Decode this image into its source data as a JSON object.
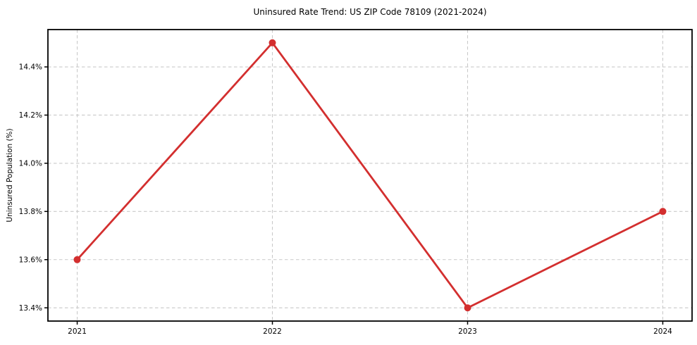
{
  "chart_data": {
    "type": "line",
    "title": "Uninsured Rate Trend: US ZIP Code 78109 (2021-2024)",
    "xlabel": "",
    "ylabel": "Uninsured Population (%)",
    "x": [
      2021,
      2022,
      2023,
      2024
    ],
    "values": [
      13.6,
      14.5,
      13.4,
      13.8
    ],
    "x_tick_labels": [
      "2021",
      "2022",
      "2023",
      "2024"
    ],
    "y_ticks": [
      13.4,
      13.6,
      13.8,
      14.0,
      14.2,
      14.4
    ],
    "y_tick_labels": [
      "13.4%",
      "13.6%",
      "13.8%",
      "14.0%",
      "14.2%",
      "14.4%"
    ],
    "xlim": [
      2020.85,
      2024.15
    ],
    "ylim": [
      13.345,
      14.555
    ],
    "grid": true,
    "grid_style": "dashed",
    "legend": "none",
    "marker": "circle",
    "colors": {
      "line": "#d32f2f",
      "marker": "#d32f2f",
      "grid": "#c9c9c9",
      "axis": "#000000",
      "text": "#000000",
      "background": "#ffffff"
    }
  }
}
